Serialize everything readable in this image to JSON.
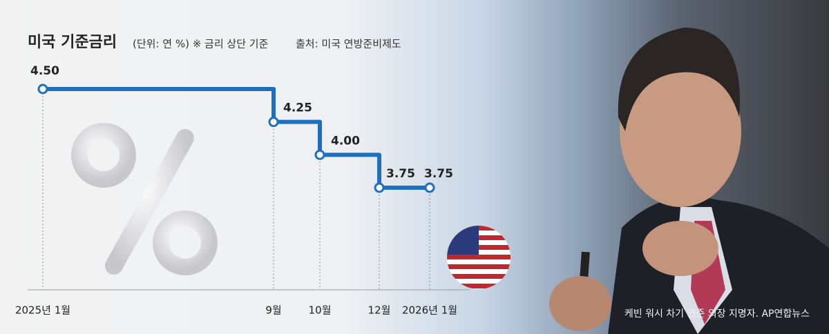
{
  "chart_data": {
    "type": "step",
    "title": "미국 기준금리",
    "subtitle": "(단위: 연 %) ※ 금리 상단 기준",
    "source": "출처: 미국 연방준비제도",
    "categories": [
      "2025년 1월",
      "9월",
      "10월",
      "12월",
      "2026년 1월"
    ],
    "values": [
      4.5,
      4.25,
      4.0,
      3.75,
      3.75
    ],
    "value_labels": [
      "4.50",
      "4.25",
      "4.00",
      "3.75",
      "3.75"
    ],
    "color": "#1f6fc0",
    "caption": "케빈 워시 차기 연준 의장 지명자. AP연합뉴스"
  }
}
